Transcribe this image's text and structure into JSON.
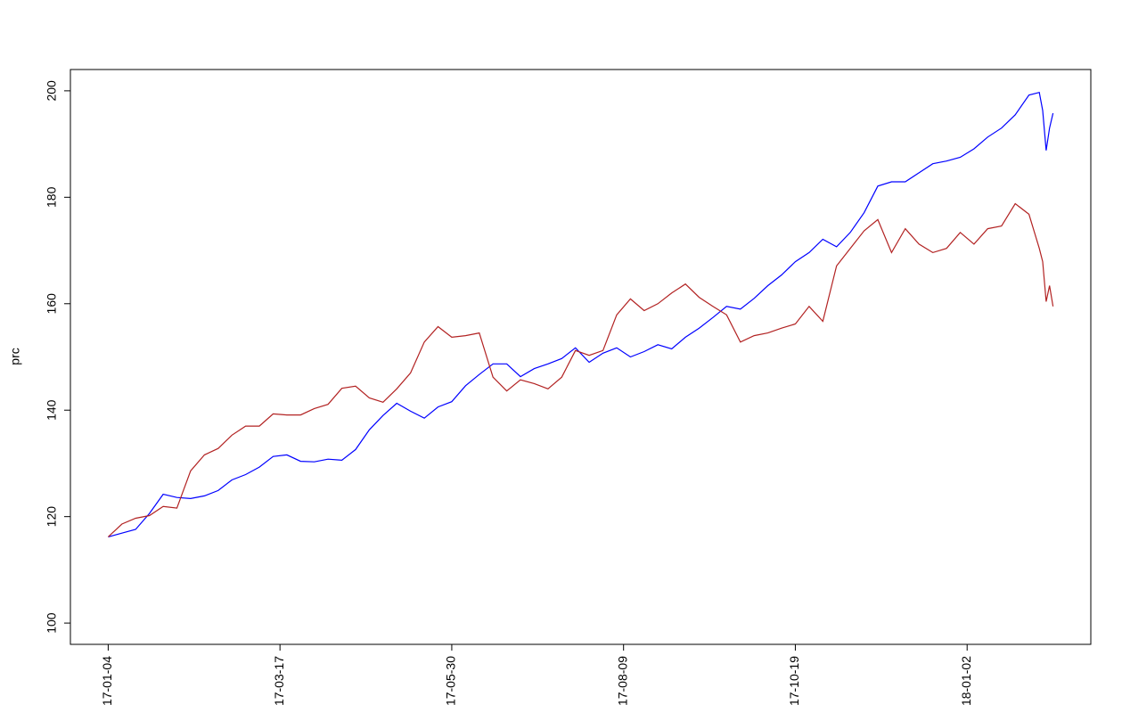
{
  "chart_data": {
    "type": "line",
    "y_label": "prc",
    "xlim": [
      -10,
      287
    ],
    "ylim": [
      96,
      204
    ],
    "yticks": [
      100,
      120,
      140,
      160,
      180,
      200
    ],
    "xticks": [
      {
        "value": 1,
        "label": "17-01-04"
      },
      {
        "value": 51,
        "label": "17-03-17"
      },
      {
        "value": 101,
        "label": "17-05-30"
      },
      {
        "value": 151,
        "label": "17-08-09"
      },
      {
        "value": 201,
        "label": "17-10-19"
      },
      {
        "value": 251,
        "label": "18-01-02"
      }
    ],
    "x": [
      1,
      5,
      9,
      13,
      17,
      21,
      25,
      29,
      33,
      37,
      41,
      45,
      49,
      53,
      57,
      61,
      65,
      69,
      73,
      77,
      81,
      85,
      89,
      93,
      97,
      101,
      105,
      109,
      113,
      117,
      121,
      125,
      129,
      133,
      137,
      141,
      145,
      149,
      153,
      157,
      161,
      165,
      169,
      173,
      177,
      181,
      185,
      189,
      193,
      197,
      201,
      205,
      209,
      213,
      217,
      221,
      225,
      229,
      233,
      237,
      241,
      245,
      249,
      253,
      257,
      261,
      265,
      269,
      272,
      273,
      274,
      275,
      276
    ],
    "series": [
      {
        "color": "#0000ff",
        "values": [
          116.2,
          116.9,
          117.6,
          120.6,
          124.2,
          123.6,
          123.4,
          123.9,
          124.9,
          126.9,
          127.9,
          129.3,
          131.3,
          131.6,
          130.4,
          130.3,
          130.8,
          130.6,
          132.6,
          136.3,
          139.0,
          141.3,
          139.8,
          138.5,
          140.6,
          141.6,
          144.6,
          146.7,
          148.7,
          148.7,
          146.3,
          147.8,
          148.7,
          149.7,
          151.7,
          149.0,
          150.7,
          151.7,
          150.0,
          151.0,
          152.3,
          151.5,
          153.7,
          155.4,
          157.4,
          159.5,
          159.0,
          161.0,
          163.4,
          165.4,
          167.9,
          169.6,
          172.1,
          170.7,
          173.4,
          177.1,
          182.1,
          182.9,
          182.9,
          184.6,
          186.3,
          186.8,
          187.5,
          189.1,
          191.3,
          193.0,
          195.5,
          199.2,
          199.7,
          196.3,
          188.8,
          193.0,
          195.8
        ]
      },
      {
        "color": "#b22222",
        "values": [
          116.2,
          118.6,
          119.7,
          120.2,
          121.9,
          121.6,
          128.6,
          131.6,
          132.8,
          135.3,
          137.0,
          137.0,
          139.3,
          139.1,
          139.1,
          140.3,
          141.1,
          144.1,
          144.5,
          142.3,
          141.5,
          144.0,
          147.0,
          152.8,
          155.7,
          153.7,
          154.0,
          154.5,
          146.2,
          143.6,
          145.7,
          145.0,
          144.0,
          146.2,
          151.2,
          150.3,
          151.2,
          157.9,
          160.9,
          158.7,
          160.0,
          162.0,
          163.7,
          161.2,
          159.5,
          157.9,
          152.8,
          154.0,
          154.5,
          155.4,
          156.2,
          159.5,
          156.7,
          167.1,
          170.4,
          173.7,
          175.8,
          169.6,
          174.1,
          171.2,
          169.6,
          170.4,
          173.4,
          171.2,
          174.1,
          174.6,
          178.8,
          176.8,
          170.4,
          167.9,
          160.4,
          163.4,
          159.5
        ]
      }
    ]
  }
}
